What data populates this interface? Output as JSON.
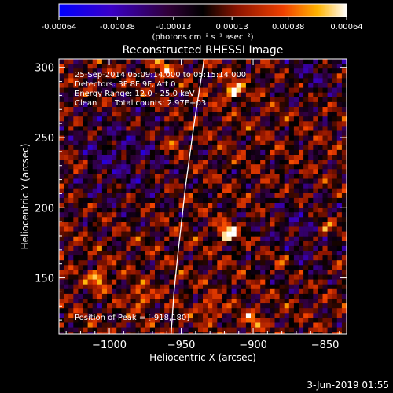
{
  "chart_data": {
    "type": "heatmap",
    "title": "Reconstructed RHESSI Image",
    "xlabel": "Heliocentric X (arcsec)",
    "ylabel": "Heliocentric Y (arcsec)",
    "xlim": [
      -1035,
      -835
    ],
    "ylim": [
      110,
      306
    ],
    "xticks": [
      -1000,
      -950,
      -900,
      -850
    ],
    "yticks": [
      150,
      200,
      250,
      300
    ],
    "colorbar": {
      "ticks": [
        -0.00064,
        -0.00038,
        -0.00013,
        0.00013,
        0.00038,
        0.00064
      ],
      "tick_labels": [
        "-0.00064",
        "-0.00038",
        "-0.00013",
        "0.00013",
        "0.00038",
        "0.00064"
      ],
      "units_label": "(photons cm⁻² s⁻¹ asec⁻²)",
      "range": [
        -0.00064,
        0.00064
      ]
    },
    "annotations": [
      "25-Sep-2014 05:09:14.000 to 05:15:14.000",
      "Detectors: 3F 8F 9F, Att 0",
      "Energy Range: 12.0 - 25.0 keV",
      "Clean",
      "Total counts: 2.97E+03"
    ],
    "peak_label": "Position of Peak = [-918,180]",
    "peak": [
      -918,
      180
    ],
    "limb": [
      [
        -934,
        306
      ],
      [
        -941,
        260
      ],
      [
        -947,
        215
      ],
      [
        -952,
        170
      ],
      [
        -955,
        140
      ],
      [
        -957,
        110
      ]
    ],
    "bright_sources": [
      {
        "x": -962,
        "y": 300,
        "value": 0.00038
      },
      {
        "x": -914,
        "y": 283,
        "value": 0.0006
      },
      {
        "x": -918,
        "y": 182,
        "value": 0.00064
      },
      {
        "x": -1007,
        "y": 150,
        "value": 0.0005
      },
      {
        "x": -978,
        "y": 136,
        "value": 0.00045
      },
      {
        "x": -930,
        "y": 128,
        "value": 0.0004
      },
      {
        "x": -900,
        "y": 120,
        "value": 0.00035
      },
      {
        "x": -880,
        "y": 165,
        "value": 0.0003
      },
      {
        "x": -850,
        "y": 185,
        "value": 0.00035
      },
      {
        "x": -955,
        "y": 245,
        "value": 0.0003
      },
      {
        "x": -1025,
        "y": 230,
        "value": 0.00028
      }
    ]
  },
  "footer": {
    "date": "3-Jun-2019 01:55"
  }
}
